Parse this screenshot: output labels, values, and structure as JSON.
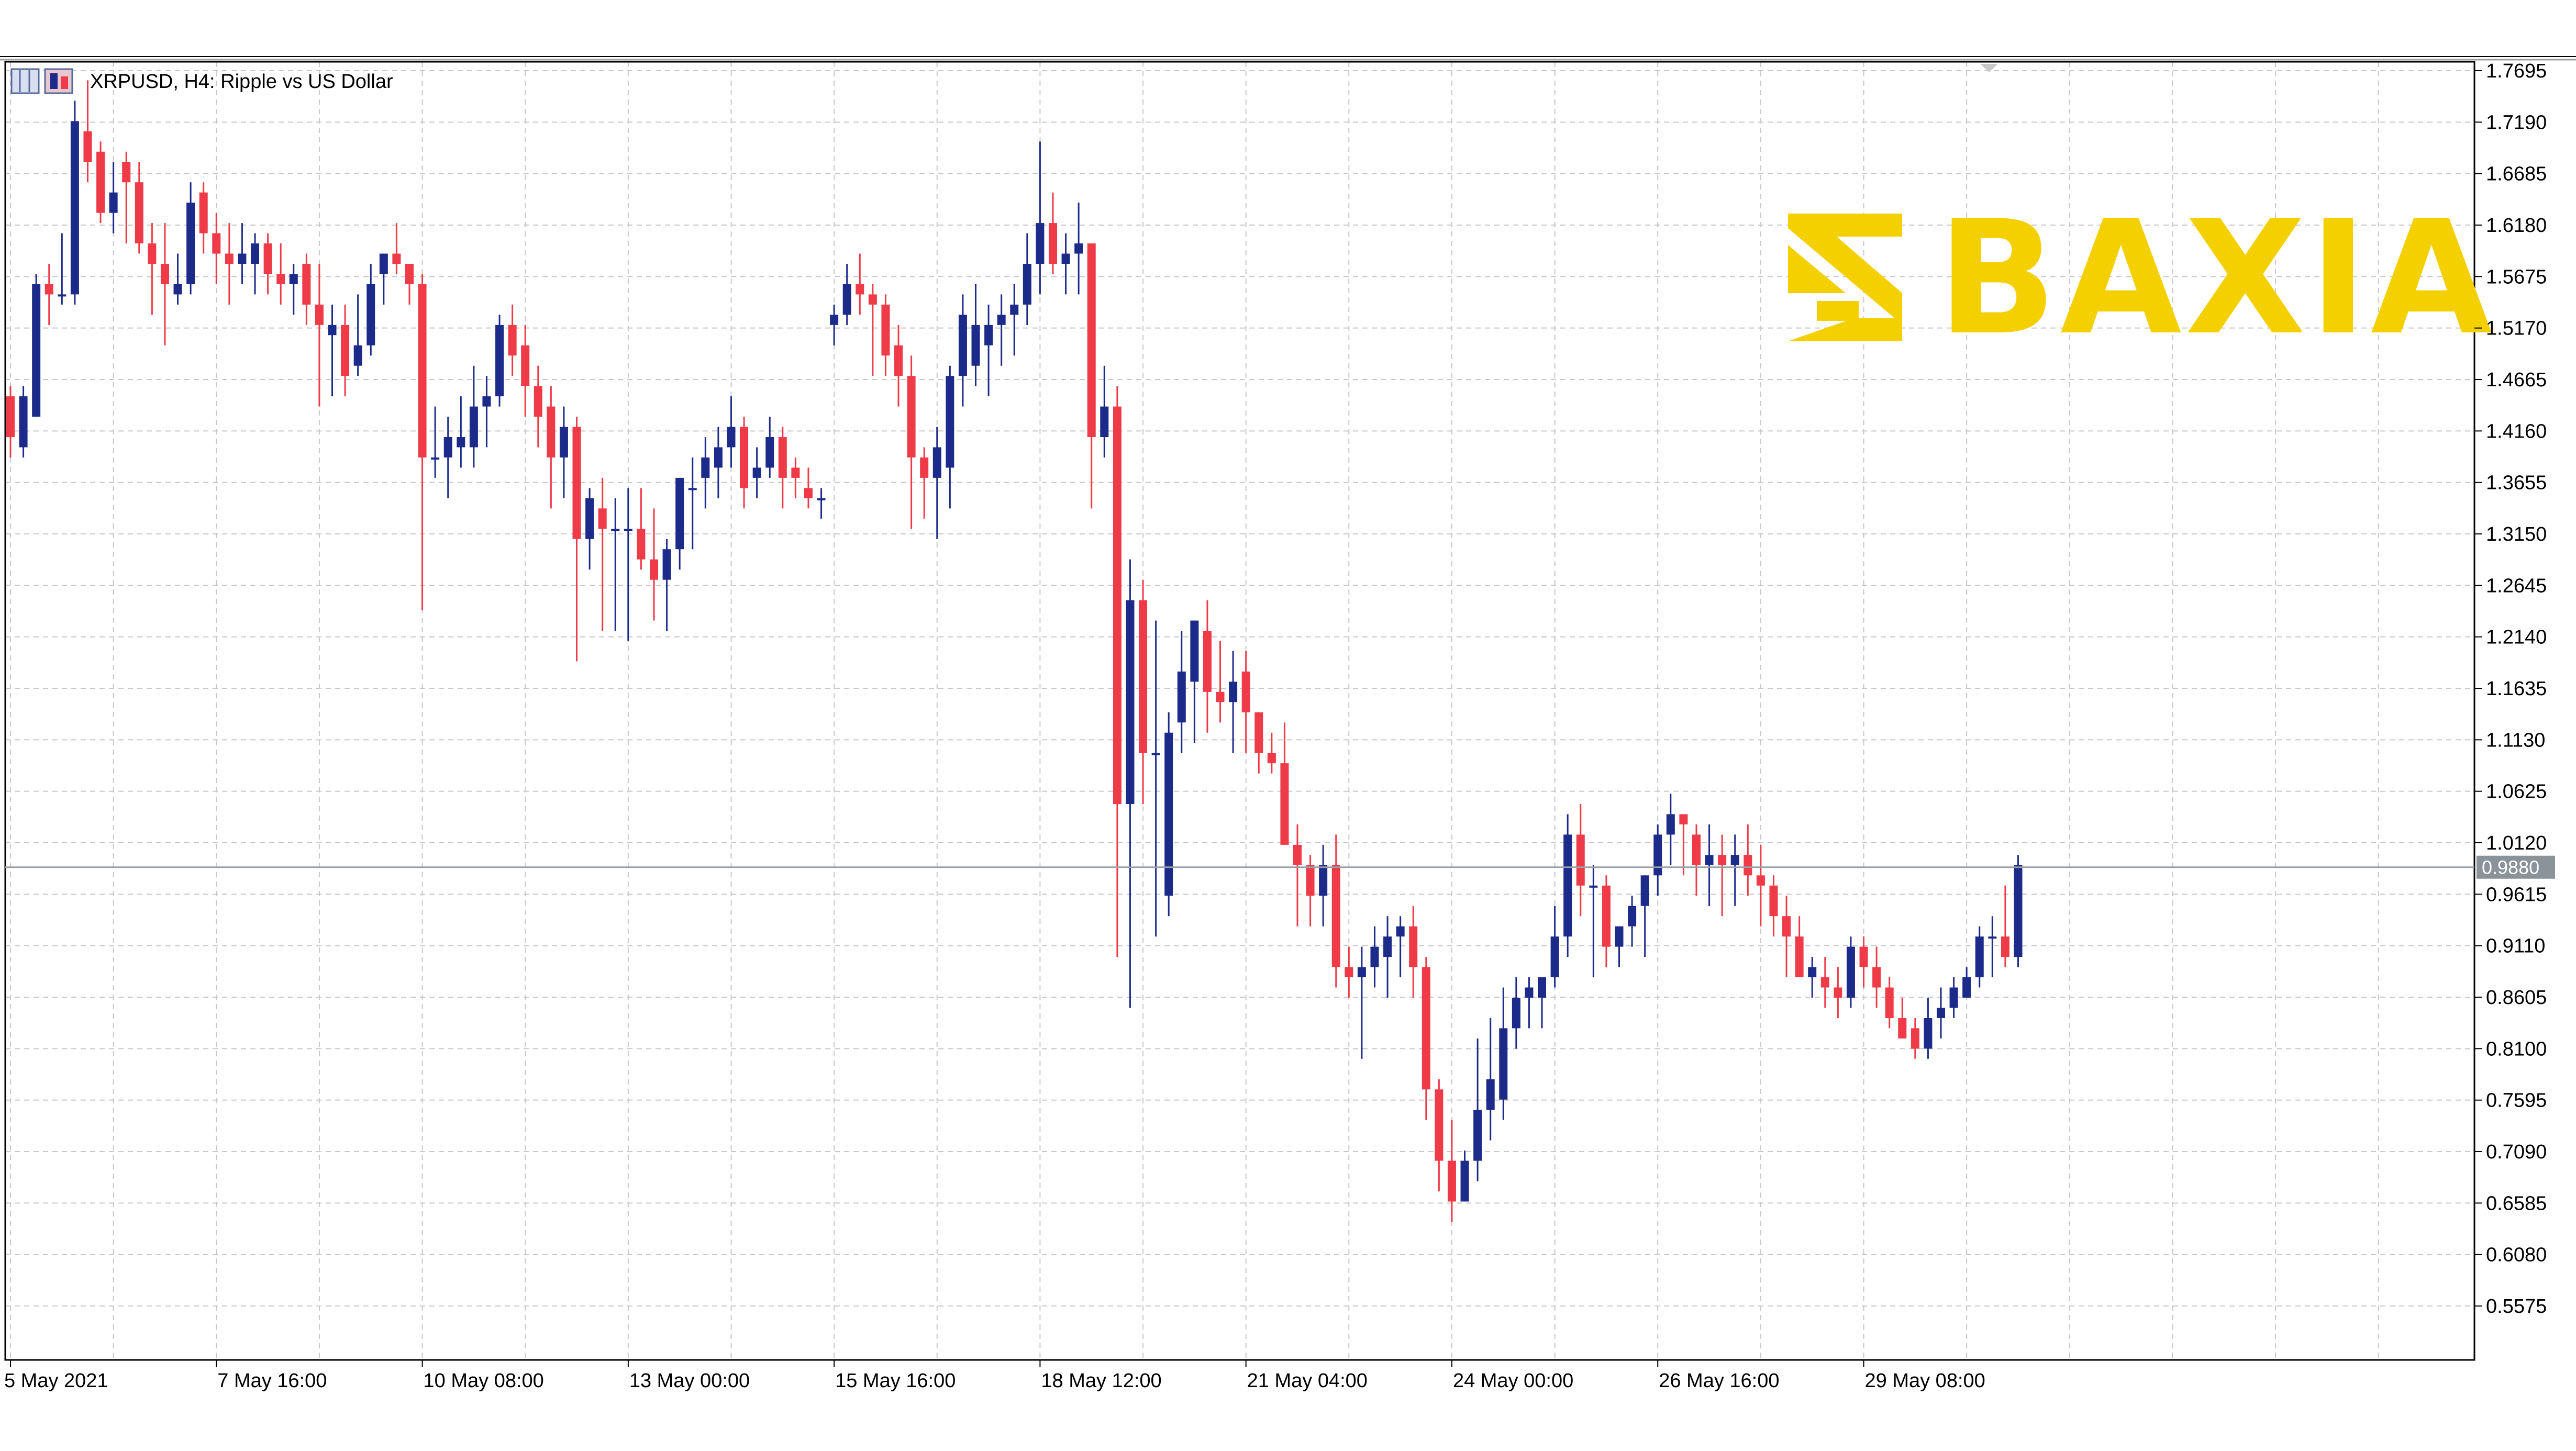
{
  "window": {
    "symbol_title": "XRPUSD, H4:  Ripple vs US Dollar"
  },
  "watermark": {
    "brand": "BAXIA",
    "color": "#f5d000"
  },
  "colors": {
    "bull": "#1c2b8a",
    "bear": "#ee3b47",
    "grid": "#c8c8c8",
    "axis": "#000000",
    "current_line": "#9aa0a6",
    "current_label_bg": "#8a929a"
  },
  "chart_data": {
    "type": "candlestick",
    "timeframe": "H4",
    "title": "XRPUSD, H4:  Ripple vs US Dollar",
    "ylim": [
      0.5,
      1.7695
    ],
    "y_ticks": [
      "1.7695",
      "1.7190",
      "1.6685",
      "1.6180",
      "1.5675",
      "1.5170",
      "1.4665",
      "1.4160",
      "1.3655",
      "1.3150",
      "1.2645",
      "1.2140",
      "1.1635",
      "1.1130",
      "1.0625",
      "1.0120",
      "0.9615",
      "0.9110",
      "0.8605",
      "0.8100",
      "0.7595",
      "0.7090",
      "0.6585",
      "0.6080",
      "0.5575"
    ],
    "x_ticks": [
      {
        "label": "5 May 2021",
        "index": 0
      },
      {
        "label": "7 May 16:00",
        "index": 16
      },
      {
        "label": "10 May 08:00",
        "index": 32
      },
      {
        "label": "13 May 00:00",
        "index": 48
      },
      {
        "label": "15 May 16:00",
        "index": 64
      },
      {
        "label": "18 May 12:00",
        "index": 80
      },
      {
        "label": "21 May 04:00",
        "index": 96
      },
      {
        "label": "24 May 00:00",
        "index": 112
      },
      {
        "label": "26 May 16:00",
        "index": 128
      },
      {
        "label": "29 May 08:00",
        "index": 144
      }
    ],
    "current_price": "0.9880",
    "current_price_value": 0.988,
    "grid": true,
    "ohlc": [
      [
        1.45,
        1.46,
        1.39,
        1.41
      ],
      [
        1.4,
        1.46,
        1.39,
        1.45
      ],
      [
        1.43,
        1.57,
        1.43,
        1.56
      ],
      [
        1.56,
        1.58,
        1.52,
        1.55
      ],
      [
        1.55,
        1.61,
        1.54,
        1.55
      ],
      [
        1.55,
        1.74,
        1.54,
        1.72
      ],
      [
        1.71,
        1.76,
        1.66,
        1.68
      ],
      [
        1.69,
        1.7,
        1.62,
        1.63
      ],
      [
        1.63,
        1.68,
        1.61,
        1.65
      ],
      [
        1.68,
        1.69,
        1.6,
        1.66
      ],
      [
        1.66,
        1.68,
        1.59,
        1.6
      ],
      [
        1.6,
        1.62,
        1.53,
        1.58
      ],
      [
        1.58,
        1.62,
        1.5,
        1.56
      ],
      [
        1.55,
        1.59,
        1.54,
        1.56
      ],
      [
        1.56,
        1.66,
        1.55,
        1.64
      ],
      [
        1.65,
        1.66,
        1.59,
        1.61
      ],
      [
        1.61,
        1.63,
        1.56,
        1.59
      ],
      [
        1.59,
        1.62,
        1.54,
        1.58
      ],
      [
        1.58,
        1.62,
        1.56,
        1.59
      ],
      [
        1.58,
        1.61,
        1.55,
        1.6
      ],
      [
        1.6,
        1.61,
        1.55,
        1.57
      ],
      [
        1.57,
        1.6,
        1.54,
        1.56
      ],
      [
        1.56,
        1.58,
        1.53,
        1.57
      ],
      [
        1.58,
        1.59,
        1.52,
        1.54
      ],
      [
        1.54,
        1.58,
        1.44,
        1.52
      ],
      [
        1.51,
        1.54,
        1.45,
        1.52
      ],
      [
        1.52,
        1.54,
        1.45,
        1.47
      ],
      [
        1.48,
        1.55,
        1.47,
        1.5
      ],
      [
        1.5,
        1.58,
        1.49,
        1.56
      ],
      [
        1.57,
        1.59,
        1.54,
        1.59
      ],
      [
        1.59,
        1.62,
        1.57,
        1.58
      ],
      [
        1.58,
        1.58,
        1.54,
        1.56
      ],
      [
        1.56,
        1.57,
        1.24,
        1.39
      ],
      [
        1.39,
        1.44,
        1.37,
        1.39
      ],
      [
        1.39,
        1.43,
        1.35,
        1.41
      ],
      [
        1.4,
        1.45,
        1.38,
        1.41
      ],
      [
        1.4,
        1.48,
        1.38,
        1.44
      ],
      [
        1.44,
        1.47,
        1.4,
        1.45
      ],
      [
        1.45,
        1.53,
        1.44,
        1.52
      ],
      [
        1.52,
        1.54,
        1.47,
        1.49
      ],
      [
        1.5,
        1.52,
        1.43,
        1.46
      ],
      [
        1.46,
        1.48,
        1.4,
        1.43
      ],
      [
        1.44,
        1.46,
        1.34,
        1.39
      ],
      [
        1.39,
        1.44,
        1.35,
        1.42
      ],
      [
        1.42,
        1.43,
        1.19,
        1.31
      ],
      [
        1.31,
        1.36,
        1.28,
        1.35
      ],
      [
        1.34,
        1.37,
        1.22,
        1.32
      ],
      [
        1.32,
        1.35,
        1.22,
        1.32
      ],
      [
        1.32,
        1.36,
        1.21,
        1.32
      ],
      [
        1.32,
        1.36,
        1.28,
        1.29
      ],
      [
        1.29,
        1.34,
        1.23,
        1.27
      ],
      [
        1.27,
        1.31,
        1.22,
        1.3
      ],
      [
        1.3,
        1.37,
        1.28,
        1.37
      ],
      [
        1.36,
        1.39,
        1.3,
        1.36
      ],
      [
        1.37,
        1.41,
        1.34,
        1.39
      ],
      [
        1.38,
        1.42,
        1.35,
        1.4
      ],
      [
        1.4,
        1.45,
        1.38,
        1.42
      ],
      [
        1.42,
        1.43,
        1.34,
        1.36
      ],
      [
        1.37,
        1.4,
        1.35,
        1.38
      ],
      [
        1.38,
        1.43,
        1.37,
        1.41
      ],
      [
        1.41,
        1.42,
        1.34,
        1.37
      ],
      [
        1.38,
        1.39,
        1.35,
        1.37
      ],
      [
        1.36,
        1.38,
        1.34,
        1.35
      ],
      [
        1.35,
        1.36,
        1.33,
        1.35
      ],
      [
        1.52,
        1.54,
        1.5,
        1.53
      ],
      [
        1.53,
        1.58,
        1.52,
        1.56
      ],
      [
        1.56,
        1.59,
        1.53,
        1.55
      ],
      [
        1.55,
        1.56,
        1.47,
        1.54
      ],
      [
        1.54,
        1.55,
        1.47,
        1.49
      ],
      [
        1.5,
        1.52,
        1.44,
        1.47
      ],
      [
        1.47,
        1.49,
        1.32,
        1.39
      ],
      [
        1.39,
        1.4,
        1.33,
        1.37
      ],
      [
        1.37,
        1.42,
        1.31,
        1.4
      ],
      [
        1.38,
        1.48,
        1.34,
        1.47
      ],
      [
        1.47,
        1.55,
        1.44,
        1.53
      ],
      [
        1.48,
        1.56,
        1.46,
        1.52
      ],
      [
        1.5,
        1.54,
        1.45,
        1.52
      ],
      [
        1.52,
        1.55,
        1.48,
        1.53
      ],
      [
        1.53,
        1.56,
        1.49,
        1.54
      ],
      [
        1.54,
        1.61,
        1.52,
        1.58
      ],
      [
        1.58,
        1.7,
        1.55,
        1.62
      ],
      [
        1.62,
        1.65,
        1.57,
        1.58
      ],
      [
        1.58,
        1.61,
        1.55,
        1.59
      ],
      [
        1.59,
        1.64,
        1.55,
        1.6
      ],
      [
        1.6,
        1.6,
        1.34,
        1.41
      ],
      [
        1.41,
        1.48,
        1.39,
        1.44
      ],
      [
        1.44,
        1.46,
        0.9,
        1.05
      ],
      [
        1.05,
        1.29,
        0.85,
        1.25
      ],
      [
        1.25,
        1.27,
        1.05,
        1.1
      ],
      [
        1.1,
        1.23,
        0.92,
        1.1
      ],
      [
        0.96,
        1.14,
        0.94,
        1.12
      ],
      [
        1.13,
        1.22,
        1.1,
        1.18
      ],
      [
        1.17,
        1.23,
        1.11,
        1.23
      ],
      [
        1.22,
        1.25,
        1.12,
        1.16
      ],
      [
        1.16,
        1.21,
        1.13,
        1.15
      ],
      [
        1.15,
        1.2,
        1.1,
        1.17
      ],
      [
        1.18,
        1.2,
        1.1,
        1.14
      ],
      [
        1.14,
        1.14,
        1.08,
        1.1
      ],
      [
        1.1,
        1.12,
        1.08,
        1.09
      ],
      [
        1.09,
        1.13,
        1.02,
        1.01
      ],
      [
        1.01,
        1.03,
        0.93,
        0.99
      ],
      [
        0.99,
        1.0,
        0.93,
        0.96
      ],
      [
        0.96,
        1.01,
        0.93,
        0.99
      ],
      [
        0.99,
        1.02,
        0.87,
        0.89
      ],
      [
        0.89,
        0.91,
        0.86,
        0.88
      ],
      [
        0.88,
        0.91,
        0.8,
        0.89
      ],
      [
        0.89,
        0.93,
        0.87,
        0.91
      ],
      [
        0.9,
        0.94,
        0.86,
        0.92
      ],
      [
        0.92,
        0.94,
        0.88,
        0.93
      ],
      [
        0.93,
        0.95,
        0.86,
        0.89
      ],
      [
        0.89,
        0.9,
        0.74,
        0.77
      ],
      [
        0.77,
        0.78,
        0.67,
        0.7
      ],
      [
        0.7,
        0.74,
        0.64,
        0.66
      ],
      [
        0.66,
        0.71,
        0.66,
        0.7
      ],
      [
        0.7,
        0.82,
        0.68,
        0.75
      ],
      [
        0.75,
        0.84,
        0.72,
        0.78
      ],
      [
        0.76,
        0.87,
        0.74,
        0.83
      ],
      [
        0.83,
        0.88,
        0.81,
        0.86
      ],
      [
        0.86,
        0.88,
        0.83,
        0.87
      ],
      [
        0.86,
        0.88,
        0.83,
        0.88
      ],
      [
        0.88,
        0.95,
        0.87,
        0.92
      ],
      [
        0.92,
        1.04,
        0.9,
        1.02
      ],
      [
        1.02,
        1.05,
        0.94,
        0.97
      ],
      [
        0.97,
        0.99,
        0.88,
        0.97
      ],
      [
        0.97,
        0.98,
        0.89,
        0.91
      ],
      [
        0.91,
        0.93,
        0.89,
        0.93
      ],
      [
        0.93,
        0.96,
        0.91,
        0.95
      ],
      [
        0.95,
        0.98,
        0.9,
        0.98
      ],
      [
        0.98,
        1.03,
        0.96,
        1.02
      ],
      [
        1.02,
        1.06,
        0.99,
        1.04
      ],
      [
        1.04,
        1.04,
        0.98,
        1.03
      ],
      [
        1.02,
        1.03,
        0.96,
        0.99
      ],
      [
        0.99,
        1.03,
        0.95,
        1.0
      ],
      [
        1.0,
        1.02,
        0.94,
        0.99
      ],
      [
        0.99,
        1.02,
        0.95,
        1.0
      ],
      [
        1.0,
        1.03,
        0.96,
        0.98
      ],
      [
        0.98,
        1.01,
        0.93,
        0.97
      ],
      [
        0.97,
        0.98,
        0.92,
        0.94
      ],
      [
        0.94,
        0.96,
        0.88,
        0.92
      ],
      [
        0.92,
        0.94,
        0.88,
        0.88
      ],
      [
        0.88,
        0.9,
        0.86,
        0.89
      ],
      [
        0.88,
        0.9,
        0.85,
        0.87
      ],
      [
        0.87,
        0.89,
        0.84,
        0.86
      ],
      [
        0.86,
        0.92,
        0.85,
        0.91
      ],
      [
        0.91,
        0.92,
        0.87,
        0.89
      ],
      [
        0.89,
        0.91,
        0.85,
        0.87
      ],
      [
        0.87,
        0.88,
        0.83,
        0.84
      ],
      [
        0.84,
        0.86,
        0.82,
        0.82
      ],
      [
        0.83,
        0.84,
        0.8,
        0.81
      ],
      [
        0.81,
        0.86,
        0.8,
        0.84
      ],
      [
        0.84,
        0.87,
        0.82,
        0.85
      ],
      [
        0.85,
        0.88,
        0.84,
        0.87
      ],
      [
        0.86,
        0.89,
        0.86,
        0.88
      ],
      [
        0.88,
        0.93,
        0.87,
        0.92
      ],
      [
        0.92,
        0.94,
        0.88,
        0.92
      ],
      [
        0.92,
        0.97,
        0.89,
        0.9
      ],
      [
        0.9,
        1.0,
        0.89,
        0.99
      ]
    ]
  }
}
